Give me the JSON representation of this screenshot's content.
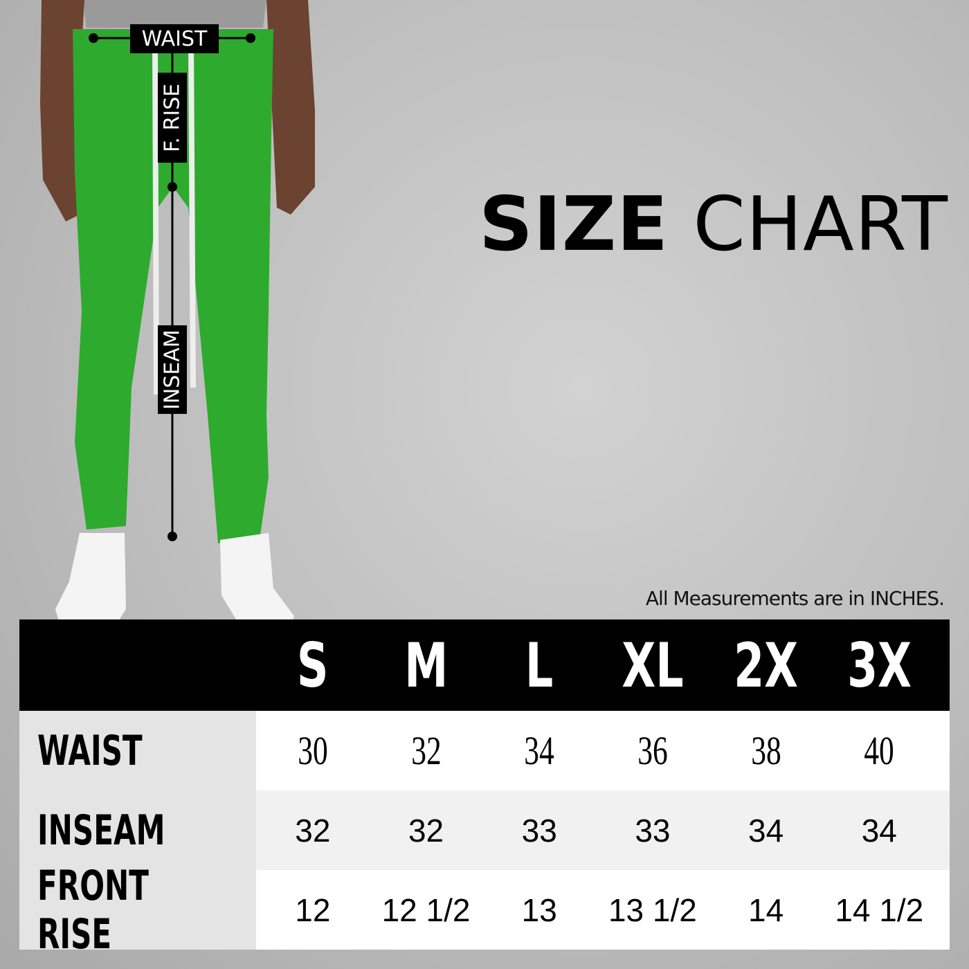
{
  "title": {
    "bold": "SIZE",
    "light": "CHART"
  },
  "note": "All Measurements are in INCHES.",
  "figure": {
    "garment_color": "#2eaa2e",
    "labels": {
      "waist": "WAIST",
      "front_rise": "F. RISE",
      "inseam": "INSEAM"
    }
  },
  "table": {
    "sizes": [
      "S",
      "M",
      "L",
      "XL",
      "2X",
      "3X"
    ],
    "rows": [
      {
        "label": "WAIST",
        "values": [
          "30",
          "32",
          "34",
          "36",
          "38",
          "40"
        ]
      },
      {
        "label": "INSEAM",
        "values": [
          "32",
          "32",
          "33",
          "33",
          "34",
          "34"
        ]
      },
      {
        "label": "FRONT RISE",
        "values": [
          "12",
          "12 1/2",
          "13",
          "13 1/2",
          "14",
          "14 1/2"
        ]
      }
    ]
  }
}
